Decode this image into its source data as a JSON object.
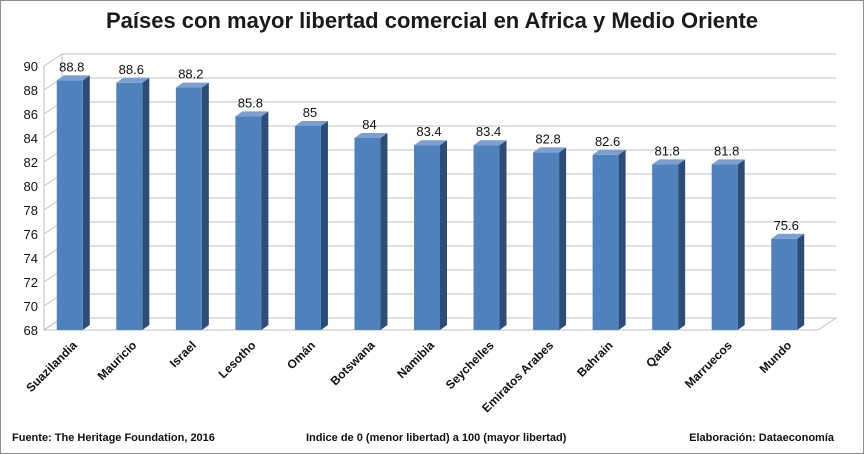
{
  "chart_data": {
    "type": "bar",
    "title": "Países con mayor libertad comercial en Africa y Medio Oriente",
    "categories": [
      "Suazilandia",
      "Mauricio",
      "Israel",
      "Lesotho",
      "Omán",
      "Botswana",
      "Namibia",
      "Seychelles",
      "Emiratos Arabes",
      "Bahrain",
      "Qatar",
      "Marruecos",
      "Mundo"
    ],
    "values": [
      88.8,
      88.6,
      88.2,
      85.8,
      85,
      84,
      83.4,
      83.4,
      82.8,
      82.6,
      81.8,
      81.8,
      75.6
    ],
    "value_labels": [
      "88.8",
      "88.6",
      "88.2",
      "85.8",
      "85",
      "84",
      "83.4",
      "83.4",
      "82.8",
      "82.6",
      "81.8",
      "81.8",
      "75.6"
    ],
    "yticks": [
      "68",
      "70",
      "72",
      "74",
      "76",
      "78",
      "80",
      "82",
      "84",
      "86",
      "88",
      "90"
    ],
    "ylim": [
      68,
      90
    ],
    "grid": true,
    "bar_color": "#4f81bd",
    "bar_side_color": "#2c4d75",
    "bar_top_color": "#7a9fd0"
  },
  "footer": {
    "source": "Fuente: The Heritage Foundation, 2016",
    "note": "Indice de 0 (menor libertad) a 100  (mayor libertad)",
    "credit": "Elaboración: Dataeconomía"
  }
}
